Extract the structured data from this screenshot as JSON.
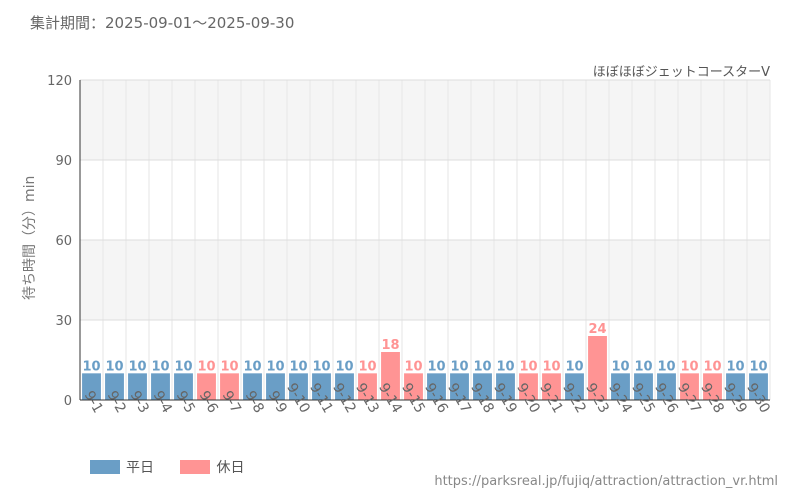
{
  "header": {
    "period_label": "集計期間：",
    "period_start": "2025-09-01",
    "period_sep": "〜",
    "period_end": "2025-09-30"
  },
  "attraction_name": "ほぼほぼジェットコースターV",
  "footer": {
    "source_url": "https://parksreal.jp/fujiq/attraction/attraction_vr.html"
  },
  "colors": {
    "weekday": "#6a9ec6",
    "holiday": "#ff9494",
    "holiday_text": "#ff9494",
    "weekday_text": "#555555"
  },
  "chart_data": {
    "type": "bar",
    "ylabel": "待ち時間（分）min",
    "ylim": [
      0,
      120
    ],
    "yticks": [
      0,
      30,
      60,
      90,
      120
    ],
    "grid": true,
    "legend_position": "bottom-left",
    "legend": [
      {
        "key": "weekday",
        "label": "平日"
      },
      {
        "key": "holiday",
        "label": "休日"
      }
    ],
    "categories": [
      "9-1",
      "9-2",
      "9-3",
      "9-4",
      "9-5",
      "9-6",
      "9-7",
      "9-8",
      "9-9",
      "9-10",
      "9-11",
      "9-12",
      "9-13",
      "9-14",
      "9-15",
      "9-16",
      "9-17",
      "9-18",
      "9-19",
      "9-20",
      "9-21",
      "9-22",
      "9-23",
      "9-24",
      "9-25",
      "9-26",
      "9-27",
      "9-28",
      "9-29",
      "9-30"
    ],
    "values": [
      10,
      10,
      10,
      10,
      10,
      10,
      10,
      10,
      10,
      10,
      10,
      10,
      10,
      18,
      10,
      10,
      10,
      10,
      10,
      10,
      10,
      10,
      24,
      10,
      10,
      10,
      10,
      10,
      10,
      10
    ],
    "day_type": [
      "weekday",
      "weekday",
      "weekday",
      "weekday",
      "weekday",
      "holiday",
      "holiday",
      "weekday",
      "weekday",
      "weekday",
      "weekday",
      "weekday",
      "holiday",
      "holiday",
      "holiday",
      "weekday",
      "weekday",
      "weekday",
      "weekday",
      "holiday",
      "holiday",
      "weekday",
      "holiday",
      "weekday",
      "weekday",
      "weekday",
      "holiday",
      "holiday",
      "weekday",
      "weekday"
    ]
  }
}
